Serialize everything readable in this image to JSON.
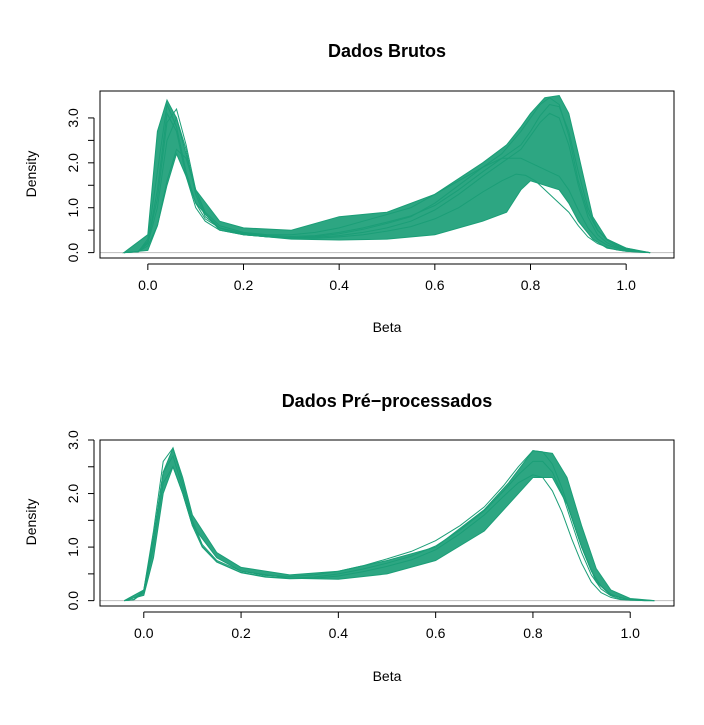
{
  "chart_data": [
    {
      "type": "line",
      "title": "Dados Brutos",
      "xlabel": "Beta",
      "ylabel": "Density",
      "xlim": [
        -0.1,
        1.1
      ],
      "ylim": [
        -0.12,
        3.6
      ],
      "xticks": [
        "0.0",
        "0.2",
        "0.4",
        "0.6",
        "0.8",
        "1.0"
      ],
      "yticks": [
        "0.0",
        "1.0",
        "2.0",
        "3.0"
      ],
      "color": "#1b9e77",
      "envelope": {
        "x": [
          -0.05,
          0.0,
          0.02,
          0.04,
          0.06,
          0.08,
          0.1,
          0.15,
          0.2,
          0.3,
          0.4,
          0.5,
          0.6,
          0.7,
          0.75,
          0.78,
          0.8,
          0.83,
          0.86,
          0.88,
          0.9,
          0.93,
          0.96,
          1.0,
          1.05
        ],
        "lower": [
          0.0,
          0.05,
          0.6,
          1.5,
          2.2,
          1.7,
          1.1,
          0.5,
          0.4,
          0.3,
          0.28,
          0.3,
          0.4,
          0.7,
          0.9,
          1.4,
          1.6,
          1.5,
          1.4,
          1.1,
          0.7,
          0.3,
          0.1,
          0.03,
          0.0
        ],
        "upper": [
          0.0,
          0.4,
          2.7,
          3.4,
          3.0,
          2.2,
          1.4,
          0.7,
          0.55,
          0.5,
          0.8,
          0.9,
          1.3,
          2.0,
          2.4,
          2.8,
          3.1,
          3.45,
          3.5,
          3.1,
          2.2,
          0.8,
          0.3,
          0.1,
          0.0
        ]
      },
      "series": [
        {
          "values_x": [
            -0.05,
            -0.02,
            0.0,
            0.02,
            0.04,
            0.06,
            0.08,
            0.1,
            0.12,
            0.15,
            0.2,
            0.25,
            0.3,
            0.35,
            0.4,
            0.45,
            0.5,
            0.55,
            0.6,
            0.65,
            0.7,
            0.74,
            0.78,
            0.8,
            0.82,
            0.84,
            0.86,
            0.88,
            0.9,
            0.92,
            0.94,
            0.96,
            0.98,
            1.0,
            1.03,
            1.05
          ],
          "values_y": [
            0.0,
            0.02,
            0.25,
            1.2,
            2.9,
            3.2,
            2.4,
            1.4,
            0.9,
            0.6,
            0.45,
            0.4,
            0.4,
            0.45,
            0.55,
            0.7,
            0.85,
            1.0,
            1.3,
            1.6,
            1.9,
            2.2,
            2.7,
            3.0,
            3.3,
            3.45,
            3.3,
            2.6,
            1.6,
            0.9,
            0.5,
            0.3,
            0.18,
            0.1,
            0.03,
            0.0
          ]
        },
        {
          "values_x": [
            -0.05,
            -0.02,
            0.0,
            0.02,
            0.04,
            0.06,
            0.08,
            0.1,
            0.12,
            0.15,
            0.2,
            0.25,
            0.3,
            0.35,
            0.4,
            0.45,
            0.5,
            0.55,
            0.6,
            0.65,
            0.7,
            0.74,
            0.77,
            0.79,
            0.81,
            0.83,
            0.85,
            0.88,
            0.9,
            0.92,
            0.94,
            0.96,
            0.98,
            1.0,
            1.03,
            1.05
          ],
          "values_y": [
            0.0,
            0.02,
            0.15,
            0.6,
            1.6,
            2.3,
            2.1,
            1.4,
            0.85,
            0.55,
            0.4,
            0.35,
            0.32,
            0.32,
            0.35,
            0.4,
            0.48,
            0.58,
            0.75,
            1.0,
            1.35,
            1.6,
            1.75,
            1.72,
            1.6,
            1.4,
            1.2,
            0.9,
            0.6,
            0.35,
            0.2,
            0.12,
            0.06,
            0.03,
            0.01,
            0.0
          ]
        },
        {
          "values_x": [
            -0.05,
            -0.02,
            0.0,
            0.02,
            0.04,
            0.06,
            0.08,
            0.1,
            0.12,
            0.15,
            0.2,
            0.25,
            0.3,
            0.35,
            0.4,
            0.45,
            0.5,
            0.55,
            0.6,
            0.65,
            0.7,
            0.74,
            0.78,
            0.8,
            0.82,
            0.84,
            0.86,
            0.88,
            0.9,
            0.92,
            0.94,
            0.96,
            0.98,
            1.0,
            1.03,
            1.05
          ],
          "values_y": [
            0.0,
            0.02,
            0.3,
            1.8,
            3.3,
            2.8,
            1.8,
            1.1,
            0.75,
            0.55,
            0.42,
            0.36,
            0.33,
            0.34,
            0.38,
            0.45,
            0.55,
            0.7,
            0.95,
            1.3,
            1.7,
            2.0,
            2.3,
            2.6,
            2.9,
            3.1,
            3.0,
            2.4,
            1.5,
            0.8,
            0.4,
            0.22,
            0.12,
            0.06,
            0.02,
            0.0
          ]
        },
        {
          "values_x": [
            -0.05,
            -0.02,
            0.0,
            0.02,
            0.04,
            0.06,
            0.08,
            0.1,
            0.12,
            0.15,
            0.2,
            0.25,
            0.3,
            0.35,
            0.4,
            0.45,
            0.5,
            0.55,
            0.6,
            0.65,
            0.7,
            0.74,
            0.78,
            0.8,
            0.82,
            0.84,
            0.86,
            0.88,
            0.9,
            0.92,
            0.94,
            0.96,
            0.98,
            1.0,
            1.03,
            1.05
          ],
          "values_y": [
            0.0,
            0.02,
            0.2,
            1.0,
            2.5,
            3.0,
            2.3,
            1.3,
            0.8,
            0.55,
            0.43,
            0.38,
            0.36,
            0.38,
            0.45,
            0.55,
            0.68,
            0.82,
            1.05,
            1.4,
            1.8,
            2.1,
            2.4,
            2.7,
            3.05,
            3.3,
            3.25,
            2.7,
            1.8,
            1.0,
            0.5,
            0.28,
            0.15,
            0.08,
            0.02,
            0.0
          ]
        },
        {
          "values_x": [
            -0.05,
            -0.02,
            0.0,
            0.02,
            0.04,
            0.06,
            0.08,
            0.1,
            0.12,
            0.15,
            0.2,
            0.25,
            0.3,
            0.35,
            0.4,
            0.45,
            0.5,
            0.55,
            0.6,
            0.65,
            0.7,
            0.74,
            0.78,
            0.8,
            0.82,
            0.84,
            0.86,
            0.88,
            0.9,
            0.92,
            0.94,
            0.96,
            0.98,
            1.0,
            1.03,
            1.05
          ],
          "values_y": [
            0.0,
            0.02,
            0.22,
            1.4,
            3.1,
            2.7,
            1.7,
            1.0,
            0.7,
            0.5,
            0.4,
            0.35,
            0.33,
            0.36,
            0.42,
            0.52,
            0.65,
            0.8,
            1.1,
            1.5,
            1.9,
            2.1,
            2.1,
            2.0,
            1.9,
            1.8,
            1.7,
            1.4,
            0.95,
            0.55,
            0.3,
            0.17,
            0.1,
            0.05,
            0.02,
            0.0
          ]
        }
      ]
    },
    {
      "type": "line",
      "title": "Dados Pré−processados",
      "xlabel": "Beta",
      "ylabel": "Density",
      "xlim": [
        -0.09,
        1.09
      ],
      "ylim": [
        -0.1,
        3.0
      ],
      "xticks": [
        "0.0",
        "0.2",
        "0.4",
        "0.6",
        "0.8",
        "1.0"
      ],
      "yticks": [
        "0.0",
        "1.0",
        "2.0",
        "3.0"
      ],
      "color": "#1b9e77",
      "envelope": {
        "x": [
          -0.04,
          0.0,
          0.02,
          0.04,
          0.06,
          0.08,
          0.1,
          0.15,
          0.2,
          0.3,
          0.4,
          0.5,
          0.6,
          0.7,
          0.75,
          0.8,
          0.84,
          0.87,
          0.9,
          0.93,
          0.96,
          1.0,
          1.05
        ],
        "lower": [
          0.0,
          0.1,
          0.8,
          2.0,
          2.5,
          2.0,
          1.4,
          0.8,
          0.55,
          0.42,
          0.4,
          0.5,
          0.75,
          1.3,
          1.8,
          2.3,
          2.3,
          1.8,
          1.0,
          0.35,
          0.1,
          0.02,
          0.0
        ],
        "upper": [
          0.0,
          0.2,
          1.2,
          2.4,
          2.85,
          2.3,
          1.6,
          0.9,
          0.62,
          0.48,
          0.55,
          0.75,
          1.0,
          1.7,
          2.2,
          2.8,
          2.75,
          2.3,
          1.4,
          0.6,
          0.2,
          0.04,
          0.0
        ]
      },
      "series": [
        {
          "values_x": [
            -0.04,
            -0.02,
            0.0,
            0.02,
            0.04,
            0.06,
            0.08,
            0.1,
            0.12,
            0.15,
            0.2,
            0.25,
            0.3,
            0.35,
            0.4,
            0.45,
            0.5,
            0.55,
            0.6,
            0.65,
            0.7,
            0.74,
            0.77,
            0.8,
            0.82,
            0.84,
            0.86,
            0.88,
            0.9,
            0.92,
            0.94,
            0.96,
            0.98,
            1.0,
            1.03,
            1.05
          ],
          "values_y": [
            0.0,
            0.02,
            0.2,
            1.3,
            2.6,
            2.85,
            2.2,
            1.5,
            1.05,
            0.75,
            0.55,
            0.47,
            0.45,
            0.48,
            0.55,
            0.65,
            0.78,
            0.92,
            1.12,
            1.4,
            1.75,
            2.15,
            2.5,
            2.8,
            2.78,
            2.55,
            2.1,
            1.55,
            1.0,
            0.55,
            0.27,
            0.12,
            0.05,
            0.02,
            0.01,
            0.0
          ]
        },
        {
          "values_x": [
            -0.04,
            -0.02,
            0.0,
            0.02,
            0.04,
            0.06,
            0.08,
            0.1,
            0.12,
            0.15,
            0.2,
            0.25,
            0.3,
            0.35,
            0.4,
            0.45,
            0.5,
            0.55,
            0.6,
            0.65,
            0.7,
            0.74,
            0.77,
            0.8,
            0.82,
            0.84,
            0.86,
            0.88,
            0.9,
            0.92,
            0.94,
            0.96,
            0.98,
            1.0,
            1.03,
            1.05
          ],
          "values_y": [
            0.0,
            0.02,
            0.15,
            1.0,
            2.2,
            2.5,
            2.0,
            1.4,
            1.0,
            0.72,
            0.52,
            0.44,
            0.41,
            0.42,
            0.46,
            0.54,
            0.64,
            0.76,
            0.95,
            1.25,
            1.6,
            1.95,
            2.2,
            2.35,
            2.3,
            2.05,
            1.65,
            1.15,
            0.7,
            0.35,
            0.15,
            0.06,
            0.02,
            0.01,
            0.0,
            0.0
          ]
        },
        {
          "values_x": [
            -0.04,
            -0.02,
            0.0,
            0.02,
            0.04,
            0.06,
            0.08,
            0.1,
            0.12,
            0.15,
            0.2,
            0.25,
            0.3,
            0.35,
            0.4,
            0.45,
            0.5,
            0.55,
            0.6,
            0.65,
            0.7,
            0.74,
            0.77,
            0.8,
            0.82,
            0.84,
            0.86,
            0.88,
            0.9,
            0.92,
            0.94,
            0.96,
            0.98,
            1.0,
            1.03,
            1.05
          ],
          "values_y": [
            0.0,
            0.02,
            0.18,
            1.15,
            2.4,
            2.7,
            2.1,
            1.45,
            1.02,
            0.73,
            0.53,
            0.45,
            0.42,
            0.44,
            0.5,
            0.59,
            0.7,
            0.83,
            1.02,
            1.32,
            1.68,
            2.05,
            2.35,
            2.6,
            2.6,
            2.4,
            2.0,
            1.45,
            0.9,
            0.48,
            0.22,
            0.09,
            0.03,
            0.01,
            0.0,
            0.0
          ]
        }
      ]
    }
  ]
}
